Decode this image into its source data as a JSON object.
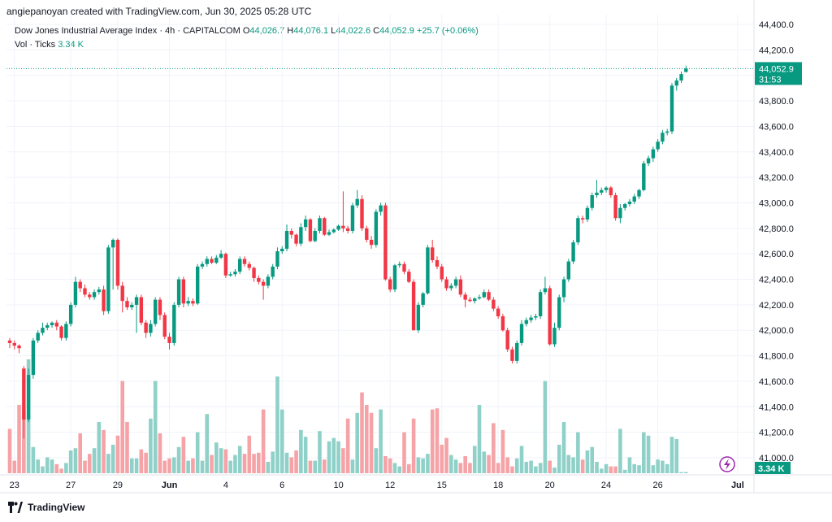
{
  "header": {
    "attribution": "angiepanoyan created with TradingView.com, Jun 30, 2025 05:28 UTC"
  },
  "legend": {
    "symbol": "Dow Jones Industrial Average Index · 4h · CAPITALCOM",
    "open_label": "O",
    "open": "44,026.7",
    "high_label": "H",
    "high": "44,076.1",
    "low_label": "L",
    "low": "44,022.6",
    "close_label": "C",
    "close": "44,052.9",
    "change": "+25.7 (+0.06%)",
    "vol_label": "Vol · Ticks",
    "vol_value": "3.34 K"
  },
  "footer": {
    "brand": "TradingView"
  },
  "colors": {
    "up": "#089981",
    "down": "#f23645",
    "up_vol": "#8fd1c8",
    "down_vol": "#f5a3a7",
    "grid": "#f0f3fa",
    "text": "#131722"
  },
  "chart_data": {
    "type": "candlestick",
    "timeframe": "4h",
    "ylim": [
      41000,
      44400
    ],
    "yticks": [
      "44,400.0",
      "44,200.0",
      "44,000.0",
      "43,800.0",
      "43,600.0",
      "43,400.0",
      "43,200.0",
      "43,000.0",
      "42,800.0",
      "42,600.0",
      "42,400.0",
      "42,200.0",
      "42,000.0",
      "41,800.0",
      "41,600.0",
      "41,400.0",
      "41,200.0",
      "41,000.0"
    ],
    "xticks": [
      {
        "label": "23",
        "bar": 1
      },
      {
        "label": "27",
        "bar": 13
      },
      {
        "label": "29",
        "bar": 23
      },
      {
        "label": "Jun",
        "bar": 34
      },
      {
        "label": "4",
        "bar": 46
      },
      {
        "label": "6",
        "bar": 58
      },
      {
        "label": "10",
        "bar": 70
      },
      {
        "label": "12",
        "bar": 81
      },
      {
        "label": "15",
        "bar": 92
      },
      {
        "label": "18",
        "bar": 104
      },
      {
        "label": "20",
        "bar": 115
      },
      {
        "label": "24",
        "bar": 127
      },
      {
        "label": "26",
        "bar": 138
      },
      {
        "label": "Jul",
        "bar": 155
      }
    ],
    "last_price_label": "44,052.9",
    "countdown": "31:53",
    "volume_label": "3.34 K",
    "close": [
      41900,
      41880,
      41860,
      41300,
      41650,
      41920,
      41980,
      42020,
      42040,
      42060,
      42030,
      41940,
      42050,
      42200,
      42380,
      42330,
      42280,
      42260,
      42300,
      42320,
      42150,
      42650,
      42710,
      42350,
      42230,
      42180,
      42200,
      42260,
      42060,
      41980,
      42050,
      42240,
      42120,
      41950,
      41900,
      42200,
      42400,
      42210,
      42230,
      42210,
      42500,
      42520,
      42560,
      42530,
      42570,
      42600,
      42430,
      42440,
      42460,
      42560,
      42520,
      42490,
      42410,
      42380,
      42350,
      42420,
      42500,
      42620,
      42640,
      42780,
      42750,
      42680,
      42810,
      42870,
      42700,
      42780,
      42880,
      42750,
      42770,
      42790,
      42820,
      42800,
      42780,
      42980,
      43030,
      42800,
      42710,
      42670,
      42930,
      42980,
      42400,
      42320,
      42510,
      42520,
      42460,
      42380,
      42000,
      42200,
      42290,
      42650,
      42550,
      42500,
      42400,
      42330,
      42350,
      42400,
      42280,
      42240,
      42230,
      42250,
      42260,
      42300,
      42240,
      42170,
      42110,
      42000,
      41850,
      41760,
      41900,
      42050,
      42080,
      42100,
      42110,
      42300,
      42330,
      41890,
      42020,
      42260,
      42400,
      42540,
      42690,
      42880,
      42870,
      42960,
      43060,
      43080,
      43100,
      43120,
      43060,
      42880,
      42960,
      42990,
      43010,
      43050,
      43100,
      43310,
      43350,
      43420,
      43480,
      43550,
      43560,
      43920,
      43960,
      44010,
      44052.9
    ],
    "open": [
      41920,
      41900,
      41880,
      41700,
      41300,
      41650,
      41920,
      41980,
      42020,
      42040,
      42060,
      42030,
      41940,
      42050,
      42200,
      42380,
      42330,
      42280,
      42260,
      42300,
      42320,
      42150,
      42650,
      42710,
      42350,
      42230,
      42180,
      42200,
      42260,
      42060,
      41980,
      42050,
      42240,
      42120,
      41950,
      41900,
      42200,
      42400,
      42210,
      42230,
      42210,
      42500,
      42520,
      42560,
      42530,
      42570,
      42600,
      42430,
      42440,
      42460,
      42560,
      42520,
      42490,
      42410,
      42380,
      42350,
      42420,
      42500,
      42620,
      42640,
      42780,
      42750,
      42680,
      42810,
      42870,
      42700,
      42780,
      42880,
      42750,
      42770,
      42790,
      42820,
      42800,
      42780,
      42980,
      43030,
      42800,
      42710,
      42670,
      42930,
      42980,
      42400,
      42320,
      42510,
      42520,
      42460,
      42380,
      42000,
      42200,
      42290,
      42650,
      42550,
      42500,
      42400,
      42330,
      42350,
      42400,
      42280,
      42240,
      42230,
      42250,
      42260,
      42300,
      42240,
      42170,
      42110,
      42000,
      41850,
      41760,
      41900,
      42050,
      42080,
      42100,
      42110,
      42300,
      42330,
      41890,
      42020,
      42260,
      42400,
      42540,
      42690,
      42880,
      42870,
      42960,
      43060,
      43080,
      43100,
      43120,
      43060,
      42880,
      42960,
      42990,
      43010,
      43050,
      43100,
      43310,
      43350,
      43420,
      43480,
      43550,
      43560,
      43920,
      43960,
      44026.7
    ],
    "high": [
      41940,
      41920,
      41890,
      41720,
      41700,
      41940,
      42000,
      42060,
      42060,
      42070,
      42080,
      42040,
      42070,
      42220,
      42420,
      42400,
      42360,
      42300,
      42320,
      42340,
      42350,
      42670,
      42720,
      42720,
      42380,
      42260,
      42220,
      42280,
      42280,
      42080,
      42080,
      42260,
      42260,
      42140,
      41980,
      42220,
      42420,
      42420,
      42260,
      42250,
      42520,
      42540,
      42580,
      42580,
      42590,
      42630,
      42610,
      42460,
      42480,
      42580,
      42580,
      42540,
      42500,
      42430,
      42400,
      42440,
      42520,
      42650,
      42660,
      42830,
      42800,
      42760,
      42840,
      42900,
      42880,
      42800,
      42900,
      42890,
      42790,
      42800,
      42830,
      43090,
      42820,
      43000,
      43100,
      43060,
      42820,
      42740,
      42950,
      43000,
      43000,
      42420,
      42520,
      42540,
      42540,
      42480,
      42400,
      42220,
      42300,
      42670,
      42710,
      42580,
      42520,
      42420,
      42370,
      42420,
      42430,
      42300,
      42260,
      42260,
      42280,
      42320,
      42320,
      42260,
      42190,
      42130,
      42020,
      41870,
      41920,
      42080,
      42100,
      42120,
      42130,
      42320,
      42420,
      42350,
      42060,
      42280,
      42420,
      42560,
      42710,
      42900,
      42900,
      42980,
      43080,
      43180,
      43120,
      43130,
      43130,
      43080,
      42990,
      43000,
      43030,
      43070,
      43110,
      43330,
      43370,
      43440,
      43500,
      43570,
      43580,
      43940,
      43980,
      44030,
      44076.1
    ],
    "low": [
      41860,
      41850,
      41820,
      41150,
      41280,
      41620,
      41900,
      41960,
      42000,
      42020,
      42000,
      41920,
      41920,
      42030,
      42180,
      42300,
      42260,
      42240,
      42240,
      42280,
      42120,
      42130,
      42320,
      42320,
      42140,
      42160,
      42160,
      41980,
      42040,
      41940,
      41950,
      42030,
      42080,
      41930,
      41850,
      41880,
      42180,
      42180,
      42190,
      42190,
      42200,
      42480,
      42500,
      42520,
      42520,
      42560,
      42410,
      42420,
      42420,
      42440,
      42500,
      42470,
      42380,
      42360,
      42240,
      42330,
      42400,
      42480,
      42600,
      42620,
      42720,
      42660,
      42660,
      42780,
      42690,
      42690,
      42760,
      42740,
      42740,
      42760,
      42780,
      42770,
      42760,
      42760,
      42960,
      42780,
      42690,
      42640,
      42650,
      42900,
      42390,
      42300,
      42300,
      42490,
      42440,
      42370,
      42000,
      41980,
      42180,
      42280,
      42530,
      42480,
      42380,
      42310,
      42310,
      42330,
      42260,
      42180,
      42220,
      42210,
      42240,
      42250,
      42230,
      42150,
      42090,
      41990,
      41830,
      41740,
      41740,
      41880,
      42030,
      42060,
      42080,
      42090,
      42280,
      41880,
      41870,
      42000,
      42220,
      42380,
      42520,
      42670,
      42840,
      42850,
      42940,
      43040,
      43060,
      43080,
      43040,
      42860,
      42840,
      42940,
      42970,
      42990,
      43030,
      43090,
      43290,
      43320,
      43400,
      43460,
      43530,
      43540,
      43880,
      43940,
      44022.6
    ],
    "volume": [
      0.39,
      0.11,
      0.6,
      0.56,
      1.0,
      0.23,
      0.12,
      0.06,
      0.14,
      0.12,
      0.08,
      0.04,
      0.09,
      0.2,
      0.22,
      0.35,
      0.11,
      0.17,
      0.22,
      0.45,
      0.38,
      0.17,
      0.25,
      0.33,
      0.81,
      0.45,
      0.13,
      0.13,
      0.21,
      0.18,
      0.48,
      0.81,
      0.35,
      0.11,
      0.13,
      0.14,
      0.23,
      0.32,
      0.11,
      0.13,
      0.36,
      0.11,
      0.52,
      0.16,
      0.27,
      0.22,
      0.21,
      0.11,
      0.16,
      0.24,
      0.17,
      0.33,
      0.17,
      0.18,
      0.56,
      0.1,
      0.19,
      0.85,
      0.56,
      0.18,
      0.14,
      0.2,
      0.38,
      0.32,
      0.11,
      0.11,
      0.37,
      0.12,
      0.28,
      0.31,
      0.28,
      0.22,
      0.48,
      0.12,
      0.53,
      0.71,
      0.6,
      0.53,
      0.22,
      0.56,
      0.15,
      0.13,
      0.09,
      0.06,
      0.36,
      0.08,
      0.48,
      0.14,
      0.13,
      0.17,
      0.56,
      0.57,
      0.25,
      0.31,
      0.16,
      0.12,
      0.09,
      0.15,
      0.09,
      0.24,
      0.6,
      0.19,
      0.16,
      0.44,
      0.09,
      0.38,
      0.14,
      0.06,
      0.13,
      0.24,
      0.1,
      0.11,
      0.06,
      0.09,
      0.81,
      0.11,
      0.05,
      0.25,
      0.45,
      0.16,
      0.14,
      0.36,
      0.12,
      0.2,
      0.23,
      0.1,
      0.04,
      0.08,
      0.06,
      0.06,
      0.39,
      0.03,
      0.14,
      0.08,
      0.07,
      0.36,
      0.33,
      0.07,
      0.12,
      0.11,
      0.08,
      0.32,
      0.3,
      0.01,
      0.01
    ]
  }
}
